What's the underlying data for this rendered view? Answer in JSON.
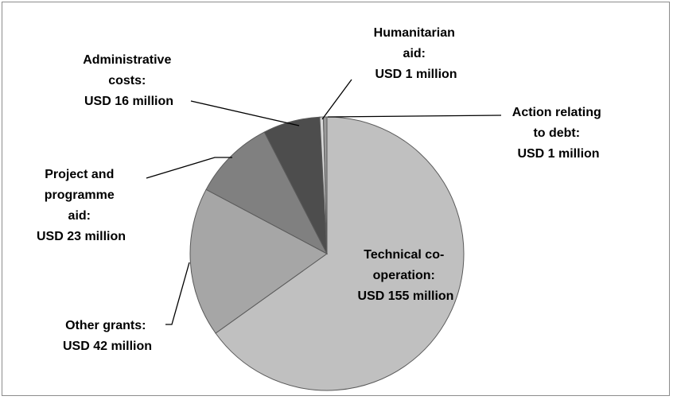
{
  "chart_data": {
    "type": "pie",
    "title": "",
    "unit": "USD million",
    "slices": [
      {
        "name": "Technical co-operation",
        "value": 155,
        "label_lines": [
          "Technical co-",
          "operation:",
          "USD 155 million"
        ],
        "color": "#c0c0c0"
      },
      {
        "name": "Other grants",
        "value": 42,
        "label_lines": [
          "Other grants:",
          "USD 42 million"
        ],
        "color": "#a6a6a6"
      },
      {
        "name": "Project and programme aid",
        "value": 23,
        "label_lines": [
          "Project and",
          "programme",
          "aid:",
          "USD 23 million"
        ],
        "color": "#808080"
      },
      {
        "name": "Administrative costs",
        "value": 16,
        "label_lines": [
          "Administrative",
          "costs:",
          "USD 16 million"
        ],
        "color": "#4d4d4d"
      },
      {
        "name": "Humanitarian aid",
        "value": 1,
        "label_lines": [
          "Humanitarian",
          "aid:",
          "USD 1 million"
        ],
        "color": "#d9d9d9"
      },
      {
        "name": "Action relating to debt",
        "value": 1,
        "label_lines": [
          "Action relating",
          "to debt:",
          "USD 1 million"
        ],
        "color": "#9a9a9a"
      }
    ],
    "legend": "none",
    "label_position": "outside-with-leaders"
  }
}
